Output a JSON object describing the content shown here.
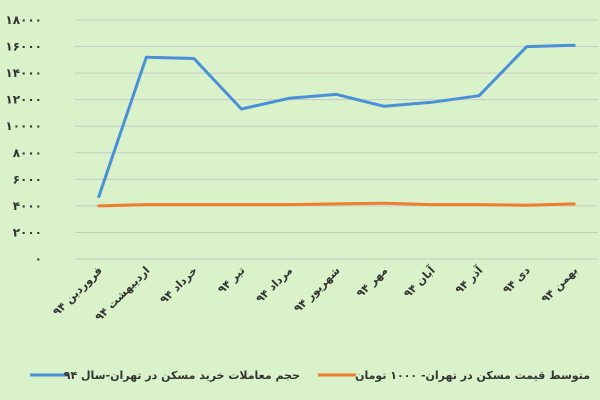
{
  "chart_data": {
    "type": "line",
    "categories": [
      "فروردین ۹۴",
      "اردیبهشت ۹۴",
      "خرداد ۹۴",
      "تیر ۹۴",
      "مرداد ۹۴",
      "شهریور ۹۴",
      "مهر ۹۴",
      "آبان ۹۴",
      "آذر ۹۴",
      "دی ۹۴",
      "بهمن ۹۴"
    ],
    "y_tick_labels": [
      "۰",
      "۲۰۰۰",
      "۴۰۰۰",
      "۶۰۰۰",
      "۸۰۰۰",
      "۱۰۰۰۰",
      "۱۲۰۰۰",
      "۱۴۰۰۰",
      "۱۶۰۰۰",
      "۱۸۰۰۰"
    ],
    "y_ticks": [
      0,
      2000,
      4000,
      6000,
      8000,
      10000,
      12000,
      14000,
      16000,
      18000
    ],
    "ylim": [
      0,
      18000
    ],
    "grid": true,
    "legend_position": "bottom",
    "series": [
      {
        "name": "حجم معاملات خرید مسکن در تهران-سال ۹۴",
        "color": "#4a90d9",
        "values": [
          4700,
          15200,
          15100,
          11300,
          12100,
          12400,
          11500,
          11800,
          12300,
          16000,
          16100
        ]
      },
      {
        "name": "متوسط قیمت مسکن در تهران- ۱۰۰۰ تومان",
        "color": "#f07d2c",
        "values": [
          4000,
          4100,
          4100,
          4100,
          4100,
          4150,
          4200,
          4100,
          4100,
          4050,
          4150
        ]
      }
    ]
  }
}
